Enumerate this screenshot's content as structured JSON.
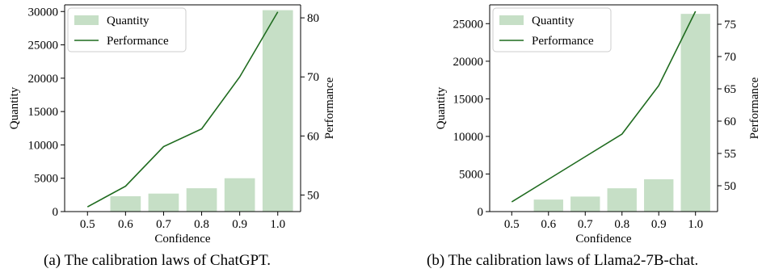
{
  "colors": {
    "bar": "#c6dfc6",
    "line": "#1f6b1f",
    "axis": "#000000"
  },
  "captions": [
    "(a)  The calibration laws of ChatGPT.",
    "(b)  The calibration laws of Llama2-7B-chat."
  ],
  "chart_data": [
    {
      "type": "bar",
      "title": "",
      "xlabel": "Confidence",
      "ylabel": "Quantity",
      "y2label": "Performance",
      "categories": [
        "0.5",
        "0.6",
        "0.7",
        "0.8",
        "0.9",
        "1.0"
      ],
      "ylim": [
        0,
        31000
      ],
      "y_ticks": [
        "0",
        "5000",
        "10000",
        "15000",
        "20000",
        "25000",
        "30000"
      ],
      "y2lim": [
        47.2,
        82.2
      ],
      "y2_ticks": [
        "50",
        "60",
        "70",
        "80"
      ],
      "legend": [
        "Quantity",
        "Performance"
      ],
      "legend_position": "top-left",
      "series": [
        {
          "name": "Quantity",
          "type": "bar",
          "values": [
            0,
            2300,
            2700,
            3500,
            5000,
            30200
          ]
        },
        {
          "name": "Performance",
          "type": "line",
          "axis": "right",
          "values": [
            48.0,
            51.5,
            58.2,
            61.2,
            70.0,
            81.0
          ]
        }
      ]
    },
    {
      "type": "bar",
      "title": "",
      "xlabel": "Confidence",
      "ylabel": "Quantity",
      "y2label": "Performance",
      "categories": [
        "0.5",
        "0.6",
        "0.7",
        "0.8",
        "0.9",
        "1.0"
      ],
      "ylim": [
        0,
        27500
      ],
      "y_ticks": [
        "0",
        "5000",
        "10000",
        "15000",
        "20000",
        "25000"
      ],
      "y2lim": [
        46.0,
        78.0
      ],
      "y2_ticks": [
        "50",
        "55",
        "60",
        "65",
        "70",
        "75"
      ],
      "legend": [
        "Quantity",
        "Performance"
      ],
      "legend_position": "top-left",
      "series": [
        {
          "name": "Quantity",
          "type": "bar",
          "values": [
            0,
            1600,
            2000,
            3100,
            4300,
            26300
          ]
        },
        {
          "name": "Performance",
          "type": "line",
          "axis": "right",
          "values": [
            47.5,
            51.0,
            54.5,
            58.0,
            65.5,
            77.0
          ]
        }
      ]
    }
  ]
}
